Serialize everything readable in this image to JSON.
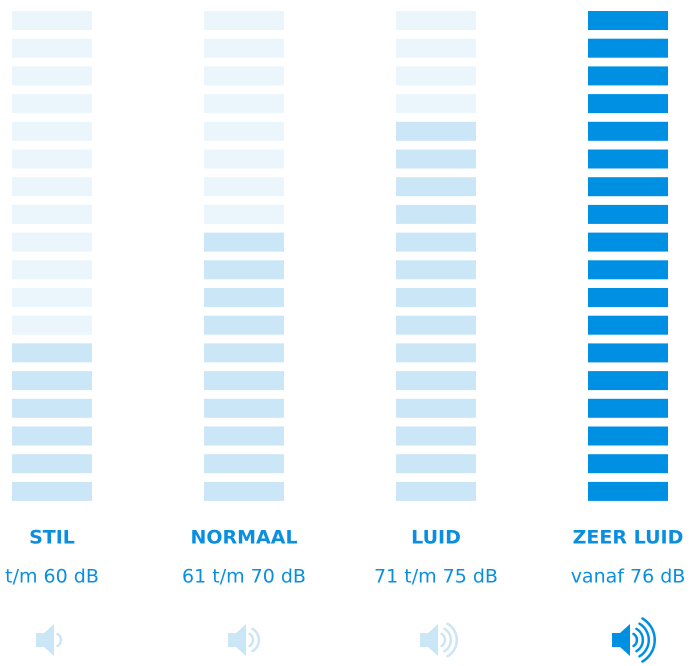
{
  "segments": 18,
  "dim_color": "#eaf5fc",
  "levels": [
    {
      "name": "STIL",
      "range": "t/m 60 dB",
      "lit": 6,
      "lit_color": "#cbe6f7"
    },
    {
      "name": "NORMAAL",
      "range": "61 t/m 70 dB",
      "lit": 10,
      "lit_color": "#cbe6f7"
    },
    {
      "name": "LUID",
      "range": "71 t/m 75 dB",
      "lit": 14,
      "lit_color": "#cbe6f7"
    },
    {
      "name": "ZEER LUID",
      "range": "vanaf 76 dB",
      "lit": 18,
      "lit_color": "#0090e3"
    }
  ]
}
